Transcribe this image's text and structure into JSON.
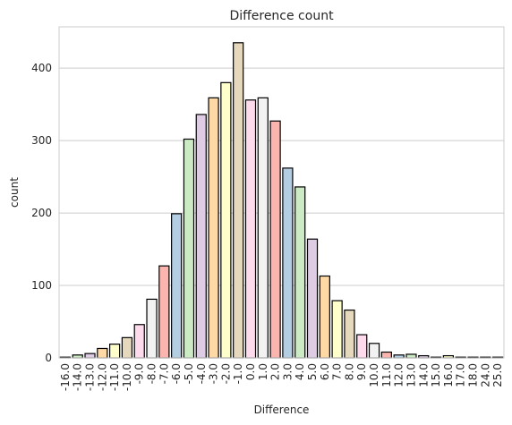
{
  "chart_data": {
    "type": "bar",
    "title": "Difference count",
    "xlabel": "Difference",
    "ylabel": "count",
    "ylim": [
      0,
      457
    ],
    "yticks": [
      0,
      100,
      200,
      300,
      400
    ],
    "grid": "y",
    "categories": [
      "-16.0",
      "-14.0",
      "-13.0",
      "-12.0",
      "-11.0",
      "-10.0",
      "-9.0",
      "-8.0",
      "-7.0",
      "-6.0",
      "-5.0",
      "-4.0",
      "-3.0",
      "-2.0",
      "-1.0",
      "0.0",
      "1.0",
      "2.0",
      "3.0",
      "4.0",
      "5.0",
      "6.0",
      "7.0",
      "8.0",
      "9.0",
      "10.0",
      "11.0",
      "12.0",
      "13.0",
      "14.0",
      "15.0",
      "16.0",
      "17.0",
      "18.0",
      "24.0",
      "25.0"
    ],
    "values": [
      1,
      4,
      6,
      13,
      19,
      28,
      46,
      81,
      127,
      199,
      302,
      336,
      359,
      380,
      435,
      356,
      359,
      327,
      262,
      236,
      164,
      113,
      79,
      66,
      32,
      20,
      8,
      4,
      5,
      3,
      1,
      3,
      1,
      1,
      1,
      1
    ],
    "colors": [
      "#b3cde3",
      "#ccebc5",
      "#decbe4",
      "#fed9a6",
      "#ffffcc",
      "#e5d8bd",
      "#fddaec",
      "#f2f2f2",
      "#fbb4ae"
    ]
  }
}
